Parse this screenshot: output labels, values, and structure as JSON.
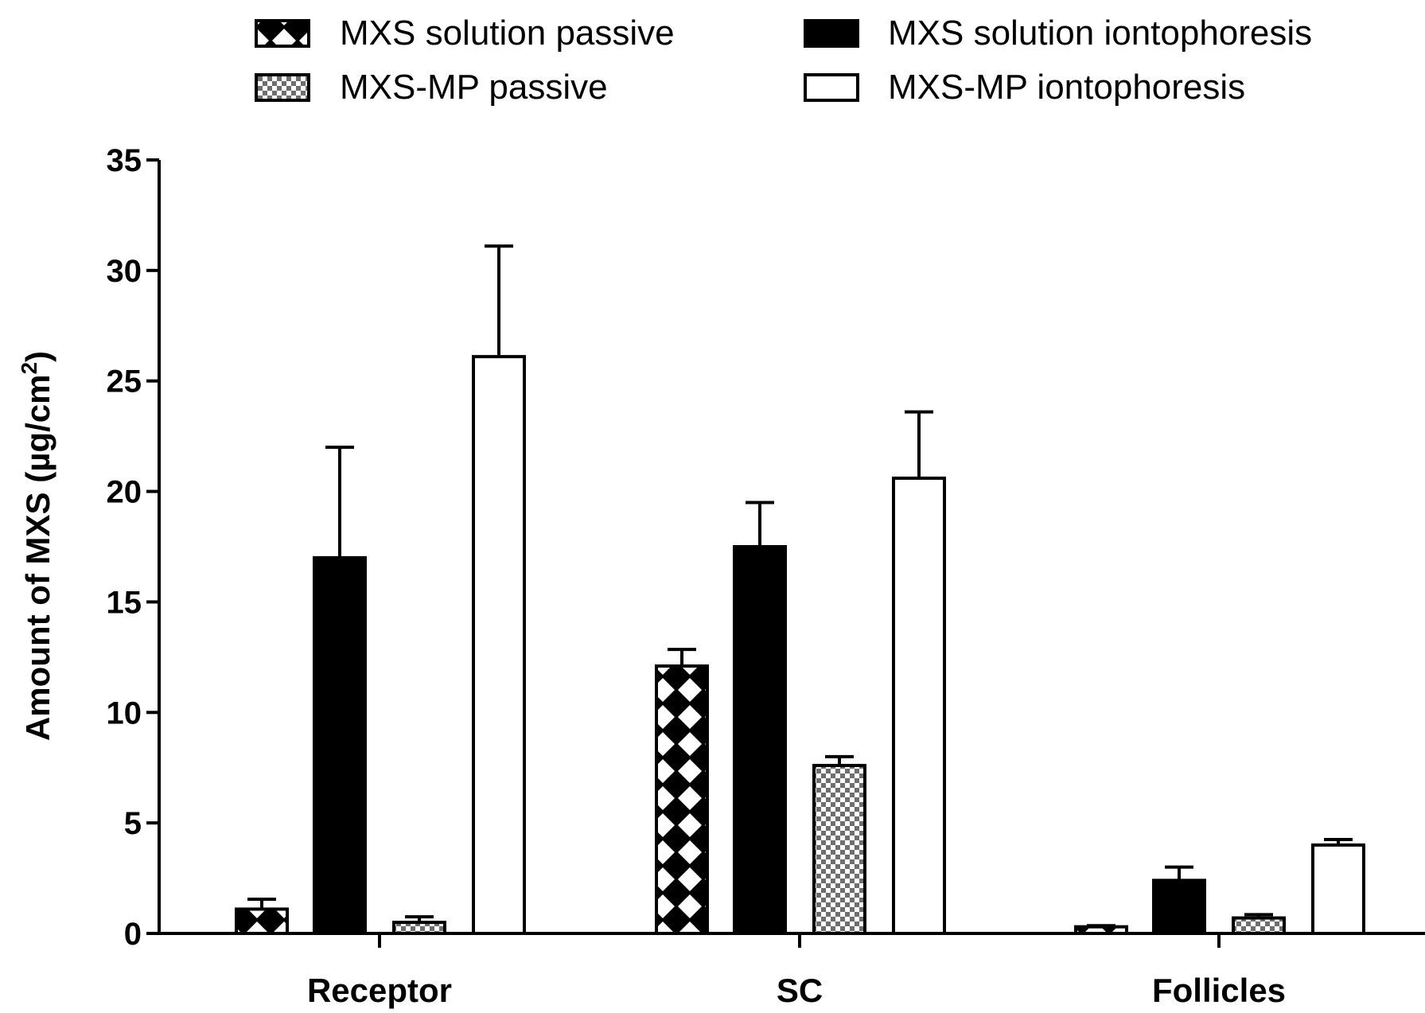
{
  "chart_data": {
    "type": "bar",
    "ylabel": "Amount of MXS (µg/cm",
    "ylabel_superscript": "2",
    "ylabel_suffix": ")",
    "ylim": [
      0,
      35
    ],
    "yticks": [
      "0",
      "5",
      "10",
      "15",
      "20",
      "25",
      "30",
      "35"
    ],
    "categories": [
      "Receptor",
      "SC",
      "Follicles"
    ],
    "legend_placement": "top",
    "grid": false,
    "series": [
      {
        "name": "MXS solution passive",
        "pattern": "cross-hatch",
        "values": [
          1.1,
          12.1,
          0.3
        ],
        "errors": [
          0.45,
          0.75,
          0.05
        ]
      },
      {
        "name": "MXS solution iontophoresis",
        "pattern": "solid-black",
        "values": [
          17.0,
          17.5,
          2.4
        ],
        "errors": [
          5.0,
          2.0,
          0.6
        ]
      },
      {
        "name": "MXS-MP passive",
        "pattern": "checkerboard",
        "values": [
          0.5,
          7.6,
          0.7
        ],
        "errors": [
          0.25,
          0.4,
          0.15
        ]
      },
      {
        "name": "MXS-MP iontophoresis",
        "pattern": "white",
        "values": [
          26.1,
          20.6,
          4.0
        ],
        "errors": [
          5.0,
          3.0,
          0.25
        ]
      }
    ]
  }
}
